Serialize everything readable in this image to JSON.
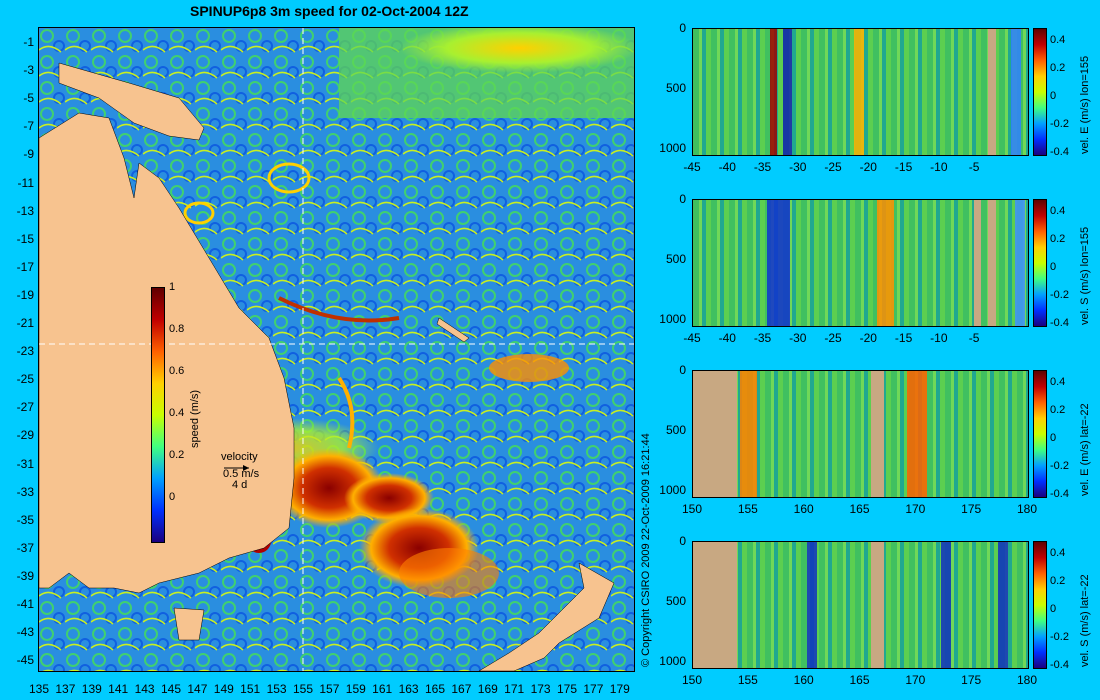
{
  "title": "SPINUP6p8 3m speed for 02-Oct-2004 12Z",
  "copyright": "© Copyright CSIRO 2009   22-Oct-2009 16:21:44",
  "map": {
    "y_ticks": [
      "-1",
      "-3",
      "-5",
      "-7",
      "-9",
      "-11",
      "-13",
      "-15",
      "-17",
      "-19",
      "-21",
      "-23",
      "-25",
      "-27",
      "-29",
      "-31",
      "-33",
      "-35",
      "-37",
      "-39",
      "-41",
      "-43",
      "-45"
    ],
    "x_ticks": [
      "135",
      "137",
      "139",
      "141",
      "143",
      "145",
      "147",
      "149",
      "151",
      "153",
      "155",
      "157",
      "159",
      "161",
      "163",
      "165",
      "167",
      "169",
      "171",
      "173",
      "175",
      "177",
      "179"
    ],
    "colorbar": {
      "label": "speed (m/s)",
      "ticks": [
        "1",
        "0.8",
        "0.6",
        "0.4",
        "0.2",
        "0"
      ]
    },
    "velocity_key": {
      "title": "velocity",
      "speed": "0.5 m/s",
      "time": "4 d"
    },
    "colors": {
      "land": "#f7c38f",
      "ocean_base": "#2a8ee0"
    }
  },
  "chart_data": [
    {
      "type": "heatmap",
      "title": "SPINUP6p8 3m speed for 02-Oct-2004 12Z",
      "xlim": [
        135,
        180
      ],
      "ylim": [
        -45,
        0
      ],
      "colorbar_label": "speed (m/s)",
      "colorbar_range": [
        0,
        1
      ]
    },
    {
      "type": "heatmap",
      "ylabel": "vel. E (m/s) lon=155",
      "x_ticks": [
        "-45",
        "-40",
        "-35",
        "-30",
        "-25",
        "-20",
        "-15",
        "-10",
        "-5"
      ],
      "y_ticks": [
        "0",
        "500",
        "1000"
      ],
      "colorbar_ticks": [
        "0.4",
        "0.2",
        "0",
        "-0.2",
        "-0.4"
      ]
    },
    {
      "type": "heatmap",
      "ylabel": "vel. S (m/s) lon=155",
      "x_ticks": [
        "-45",
        "-40",
        "-35",
        "-30",
        "-25",
        "-20",
        "-15",
        "-10",
        "-5"
      ],
      "y_ticks": [
        "0",
        "500",
        "1000"
      ],
      "colorbar_ticks": [
        "0.4",
        "0.2",
        "0",
        "-0.2",
        "-0.4"
      ]
    },
    {
      "type": "heatmap",
      "ylabel": "vel. E (m/s) lat=-22",
      "x_ticks": [
        "150",
        "155",
        "160",
        "165",
        "170",
        "175",
        "180"
      ],
      "y_ticks": [
        "0",
        "500",
        "1000"
      ],
      "colorbar_ticks": [
        "0.4",
        "0.2",
        "0",
        "-0.2",
        "-0.4"
      ]
    },
    {
      "type": "heatmap",
      "ylabel": "vel. S (m/s) lat=-22",
      "x_ticks": [
        "150",
        "155",
        "160",
        "165",
        "170",
        "175",
        "180"
      ],
      "y_ticks": [
        "0",
        "500",
        "1000"
      ],
      "colorbar_ticks": [
        "0.4",
        "0.2",
        "0",
        "-0.2",
        "-0.4"
      ]
    }
  ]
}
